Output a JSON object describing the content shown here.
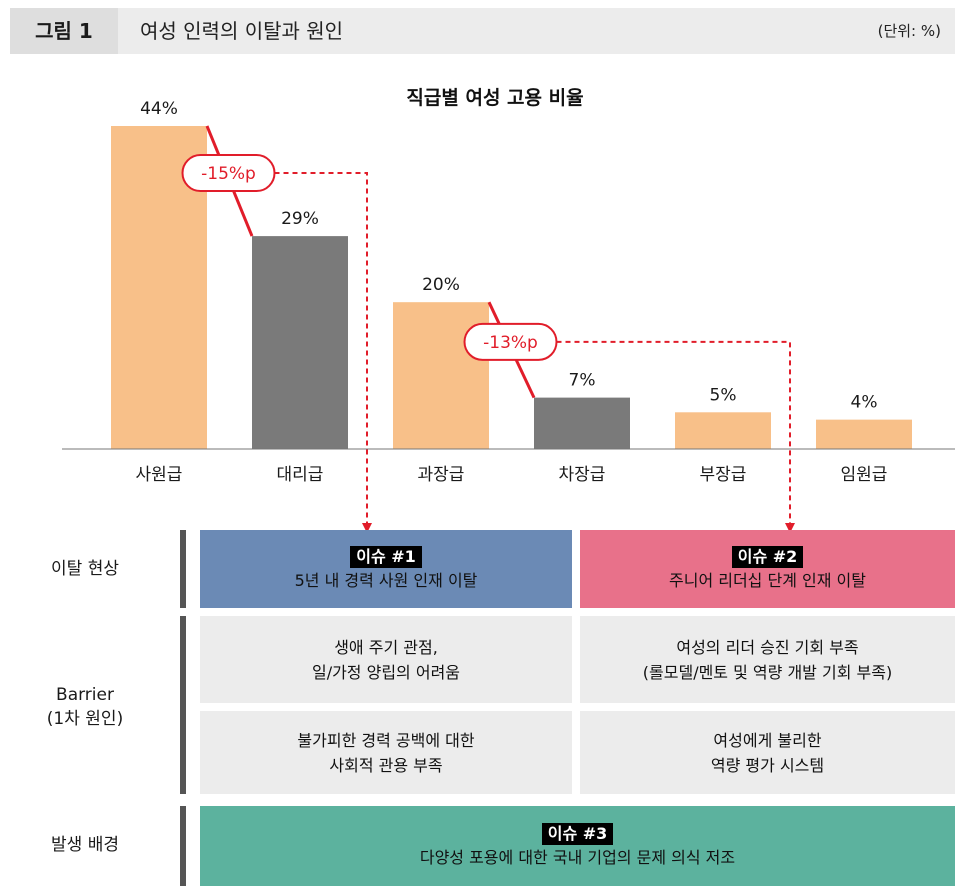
{
  "header": {
    "figure_label": "그림 1",
    "title": "여성 인력의 이탈과 원인",
    "unit": "(단위: %)"
  },
  "chart_data": {
    "type": "bar",
    "title": "직급별 여성 고용 비율",
    "categories": [
      "사원급",
      "대리급",
      "과장급",
      "차장급",
      "부장급",
      "임원급"
    ],
    "values": [
      44,
      29,
      20,
      7,
      5,
      4
    ],
    "value_labels": [
      "44%",
      "29%",
      "20%",
      "7%",
      "5%",
      "4%"
    ],
    "bar_colors": [
      "#f8c089",
      "#7a7a7a",
      "#f8c089",
      "#7a7a7a",
      "#f8c089",
      "#f8c089"
    ],
    "annotations": [
      {
        "label": "-15%p",
        "from": "사원급",
        "to": "대리급"
      },
      {
        "label": "-13%p",
        "from": "과장급",
        "to": "차장급"
      }
    ],
    "ylim": [
      0,
      44
    ],
    "accent_color": "#e11d2a"
  },
  "rows": {
    "phenomenon_label": "이탈 현상",
    "barrier_label_line1": "Barrier",
    "barrier_label_line2": "(1차 원인)",
    "background_label": "발생 배경"
  },
  "issues": {
    "issue1": {
      "tag": "이슈 #1",
      "text": "5년 내 경력 사원 인재 이탈"
    },
    "issue2": {
      "tag": "이슈 #2",
      "text": "주니어 리더십 단계 인재 이탈"
    },
    "issue3": {
      "tag": "이슈 #3",
      "text": "다양성 포용에 대한 국내 기업의 문제 의식 저조"
    }
  },
  "barriers": {
    "b1_line1": "생애 주기 관점,",
    "b1_line2": "일/가정 양립의 어려움",
    "b2_line1": "불가피한 경력 공백에 대한",
    "b2_line2": "사회적 관용 부족",
    "b3_line1": "여성의 리더 승진 기회 부족",
    "b3_line2": "(롤모델/멘토 및 역량 개발 기회 부족)",
    "b4_line1": "여성에게 불리한",
    "b4_line2": "역량 평가 시스템"
  }
}
